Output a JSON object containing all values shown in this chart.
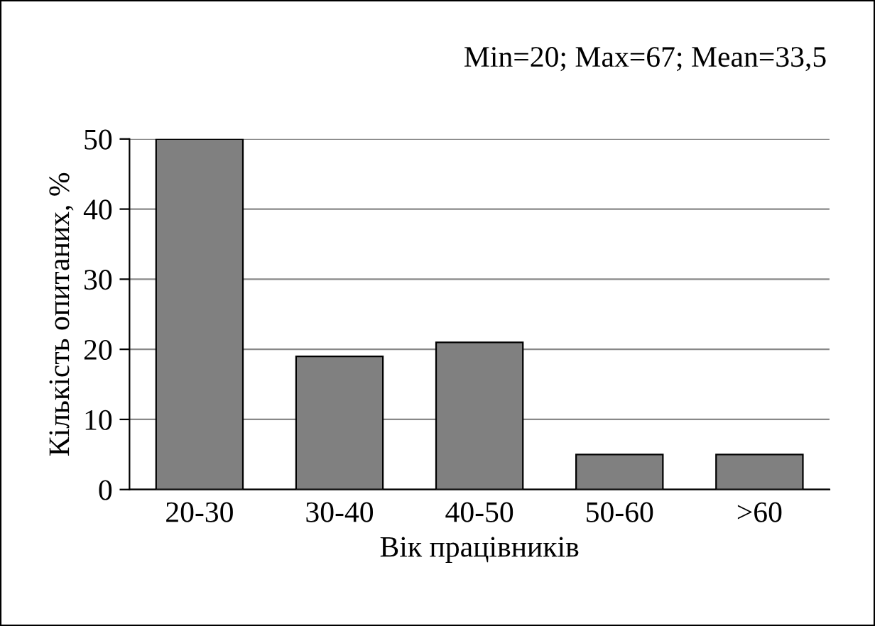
{
  "chart_data": {
    "type": "bar",
    "xlabel": "Вік працівників",
    "ylabel": "Кількість опитаних, %",
    "annotations": [
      "Min=20; Max=67; Mean=33,5"
    ],
    "categories": [
      "20-30",
      "30-40",
      "40-50",
      "50-60",
      ">60"
    ],
    "values": [
      50,
      19,
      21,
      5,
      5
    ],
    "color": "#808080",
    "ylim": [
      0,
      50
    ],
    "yticks": [
      0,
      10,
      20,
      30,
      40,
      50
    ],
    "grid": "y",
    "legend": false
  }
}
